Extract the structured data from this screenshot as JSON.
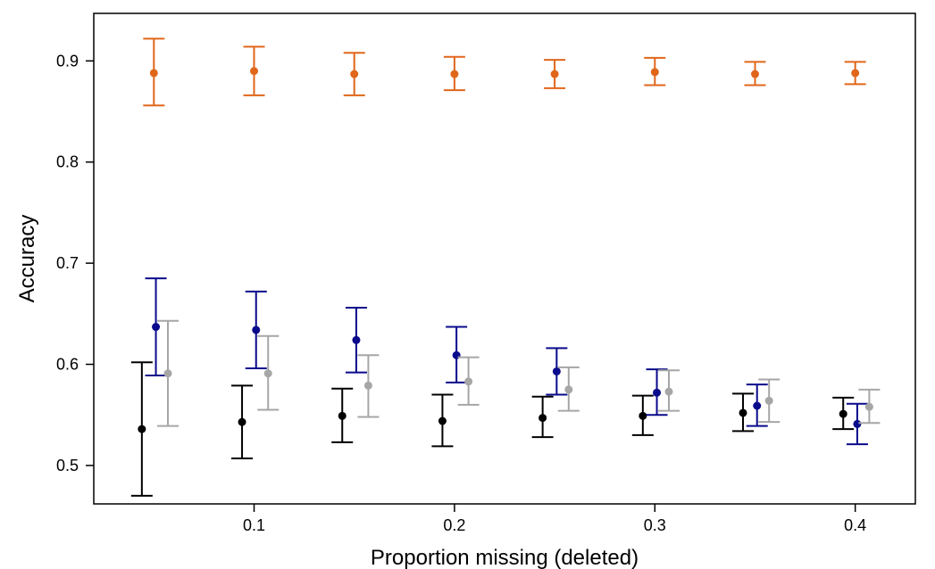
{
  "chart_data": {
    "type": "scatter",
    "xlabel": "Proportion missing (deleted)",
    "ylabel": "Accuracy",
    "xlim": [
      0.02,
      0.43
    ],
    "ylim": [
      0.462,
      0.947
    ],
    "x_ticks": [
      0.1,
      0.2,
      0.3,
      0.4
    ],
    "x_tick_labels": [
      "0.1",
      "0.2",
      "0.3",
      "0.4"
    ],
    "y_ticks": [
      0.5,
      0.6,
      0.7,
      0.8,
      0.9
    ],
    "y_tick_labels": [
      "0.5",
      "0.6",
      "0.7",
      "0.8",
      "0.9"
    ],
    "grid": false,
    "legend": "none",
    "error_bars": true,
    "series": [
      {
        "color": "#000000",
        "points": [
          {
            "x": 0.044,
            "y": 0.536,
            "lo": 0.47,
            "hi": 0.602
          },
          {
            "x": 0.094,
            "y": 0.543,
            "lo": 0.507,
            "hi": 0.579
          },
          {
            "x": 0.144,
            "y": 0.549,
            "lo": 0.523,
            "hi": 0.576
          },
          {
            "x": 0.194,
            "y": 0.544,
            "lo": 0.519,
            "hi": 0.57
          },
          {
            "x": 0.244,
            "y": 0.547,
            "lo": 0.528,
            "hi": 0.568
          },
          {
            "x": 0.294,
            "y": 0.549,
            "lo": 0.53,
            "hi": 0.569
          },
          {
            "x": 0.344,
            "y": 0.552,
            "lo": 0.534,
            "hi": 0.571
          },
          {
            "x": 0.394,
            "y": 0.551,
            "lo": 0.536,
            "hi": 0.567
          }
        ]
      },
      {
        "color": "#e0661a",
        "points": [
          {
            "x": 0.05,
            "y": 0.888,
            "lo": 0.856,
            "hi": 0.922
          },
          {
            "x": 0.1,
            "y": 0.89,
            "lo": 0.866,
            "hi": 0.914
          },
          {
            "x": 0.15,
            "y": 0.887,
            "lo": 0.866,
            "hi": 0.908
          },
          {
            "x": 0.2,
            "y": 0.887,
            "lo": 0.871,
            "hi": 0.904
          },
          {
            "x": 0.25,
            "y": 0.887,
            "lo": 0.873,
            "hi": 0.901
          },
          {
            "x": 0.3,
            "y": 0.889,
            "lo": 0.876,
            "hi": 0.903
          },
          {
            "x": 0.35,
            "y": 0.887,
            "lo": 0.876,
            "hi": 0.899
          },
          {
            "x": 0.4,
            "y": 0.888,
            "lo": 0.877,
            "hi": 0.899
          }
        ]
      },
      {
        "color": "#0a0a8c",
        "points": [
          {
            "x": 0.051,
            "y": 0.637,
            "lo": 0.589,
            "hi": 0.685
          },
          {
            "x": 0.101,
            "y": 0.634,
            "lo": 0.596,
            "hi": 0.672
          },
          {
            "x": 0.151,
            "y": 0.624,
            "lo": 0.592,
            "hi": 0.656
          },
          {
            "x": 0.201,
            "y": 0.609,
            "lo": 0.582,
            "hi": 0.637
          },
          {
            "x": 0.251,
            "y": 0.593,
            "lo": 0.57,
            "hi": 0.616
          },
          {
            "x": 0.301,
            "y": 0.572,
            "lo": 0.55,
            "hi": 0.595
          },
          {
            "x": 0.351,
            "y": 0.559,
            "lo": 0.539,
            "hi": 0.58
          },
          {
            "x": 0.401,
            "y": 0.541,
            "lo": 0.521,
            "hi": 0.561
          }
        ]
      },
      {
        "color": "#a6a6a6",
        "points": [
          {
            "x": 0.057,
            "y": 0.591,
            "lo": 0.539,
            "hi": 0.643
          },
          {
            "x": 0.107,
            "y": 0.591,
            "lo": 0.555,
            "hi": 0.628
          },
          {
            "x": 0.157,
            "y": 0.579,
            "lo": 0.548,
            "hi": 0.609
          },
          {
            "x": 0.207,
            "y": 0.583,
            "lo": 0.56,
            "hi": 0.607
          },
          {
            "x": 0.257,
            "y": 0.575,
            "lo": 0.554,
            "hi": 0.597
          },
          {
            "x": 0.307,
            "y": 0.573,
            "lo": 0.554,
            "hi": 0.594
          },
          {
            "x": 0.357,
            "y": 0.564,
            "lo": 0.543,
            "hi": 0.585
          },
          {
            "x": 0.407,
            "y": 0.558,
            "lo": 0.542,
            "hi": 0.575
          }
        ]
      }
    ]
  }
}
